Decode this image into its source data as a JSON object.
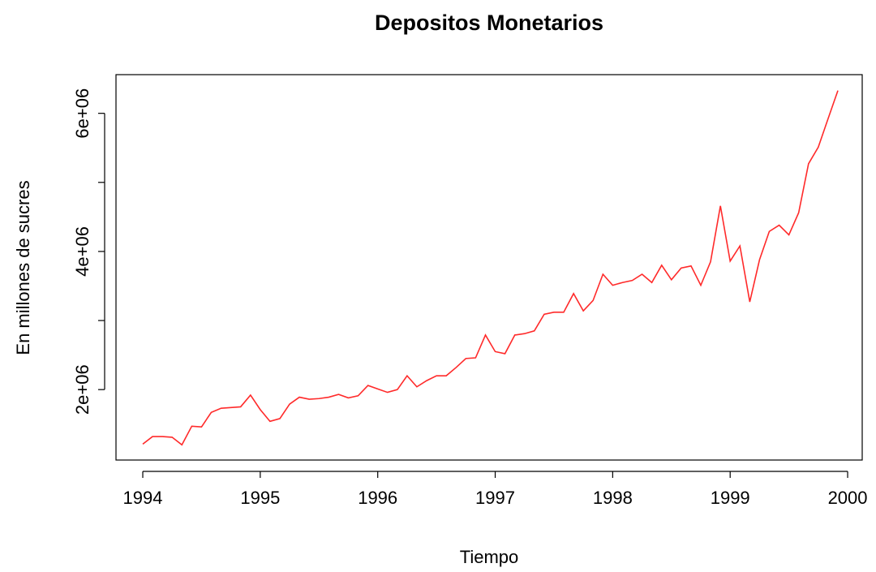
{
  "chart_data": {
    "type": "line",
    "title": "Depositos Monetarios",
    "x_label": "Tiempo",
    "y_label": "En millones de sucres",
    "x": [
      1994.0,
      1994.083,
      1994.167,
      1994.25,
      1994.333,
      1994.417,
      1994.5,
      1994.583,
      1994.667,
      1994.75,
      1994.833,
      1994.917,
      1995.0,
      1995.083,
      1995.167,
      1995.25,
      1995.333,
      1995.417,
      1995.5,
      1995.583,
      1995.667,
      1995.75,
      1995.833,
      1995.917,
      1996.0,
      1996.083,
      1996.167,
      1996.25,
      1996.333,
      1996.417,
      1996.5,
      1996.583,
      1996.667,
      1996.75,
      1996.833,
      1996.917,
      1997.0,
      1997.083,
      1997.167,
      1997.25,
      1997.333,
      1997.417,
      1997.5,
      1997.583,
      1997.667,
      1997.75,
      1997.833,
      1997.917,
      1998.0,
      1998.083,
      1998.167,
      1998.25,
      1998.333,
      1998.417,
      1998.5,
      1998.583,
      1998.667,
      1998.75,
      1998.833,
      1998.917,
      1999.0,
      1999.083,
      1999.167,
      1999.25,
      1999.333,
      1999.417,
      1999.5,
      1999.583,
      1999.667,
      1999.75,
      1999.833,
      1999.917
    ],
    "series": [
      {
        "color": "#ff2a2a",
        "values": [
          1210000,
          1320000,
          1320000,
          1310000,
          1200000,
          1470000,
          1460000,
          1670000,
          1730000,
          1740000,
          1750000,
          1920000,
          1710000,
          1540000,
          1580000,
          1790000,
          1890000,
          1860000,
          1870000,
          1890000,
          1930000,
          1880000,
          1910000,
          2060000,
          2010000,
          1960000,
          2000000,
          2200000,
          2040000,
          2130000,
          2200000,
          2200000,
          2320000,
          2450000,
          2460000,
          2790000,
          2550000,
          2520000,
          2790000,
          2810000,
          2850000,
          3090000,
          3120000,
          3120000,
          3390000,
          3140000,
          3290000,
          3670000,
          3510000,
          3550000,
          3580000,
          3670000,
          3550000,
          3800000,
          3590000,
          3760000,
          3790000,
          3510000,
          3850000,
          4660000,
          3860000,
          4080000,
          3270000,
          3880000,
          4290000,
          4380000,
          4240000,
          4560000,
          5270000,
          5510000,
          5920000,
          6330000
        ]
      }
    ],
    "xlim": [
      1993.772,
      2000.124
    ],
    "xticks": [
      1994,
      1995,
      1996,
      1997,
      1998,
      1999,
      2000
    ],
    "ylim": [
      980000,
      6560000
    ],
    "yticks": [
      {
        "value": 2000000,
        "label": "2e+06"
      },
      {
        "value": 4000000,
        "label": "4e+06"
      },
      {
        "value": 6000000,
        "label": "6e+06"
      }
    ],
    "yticks_unlabeled": [
      3000000,
      5000000
    ],
    "grid": false
  }
}
